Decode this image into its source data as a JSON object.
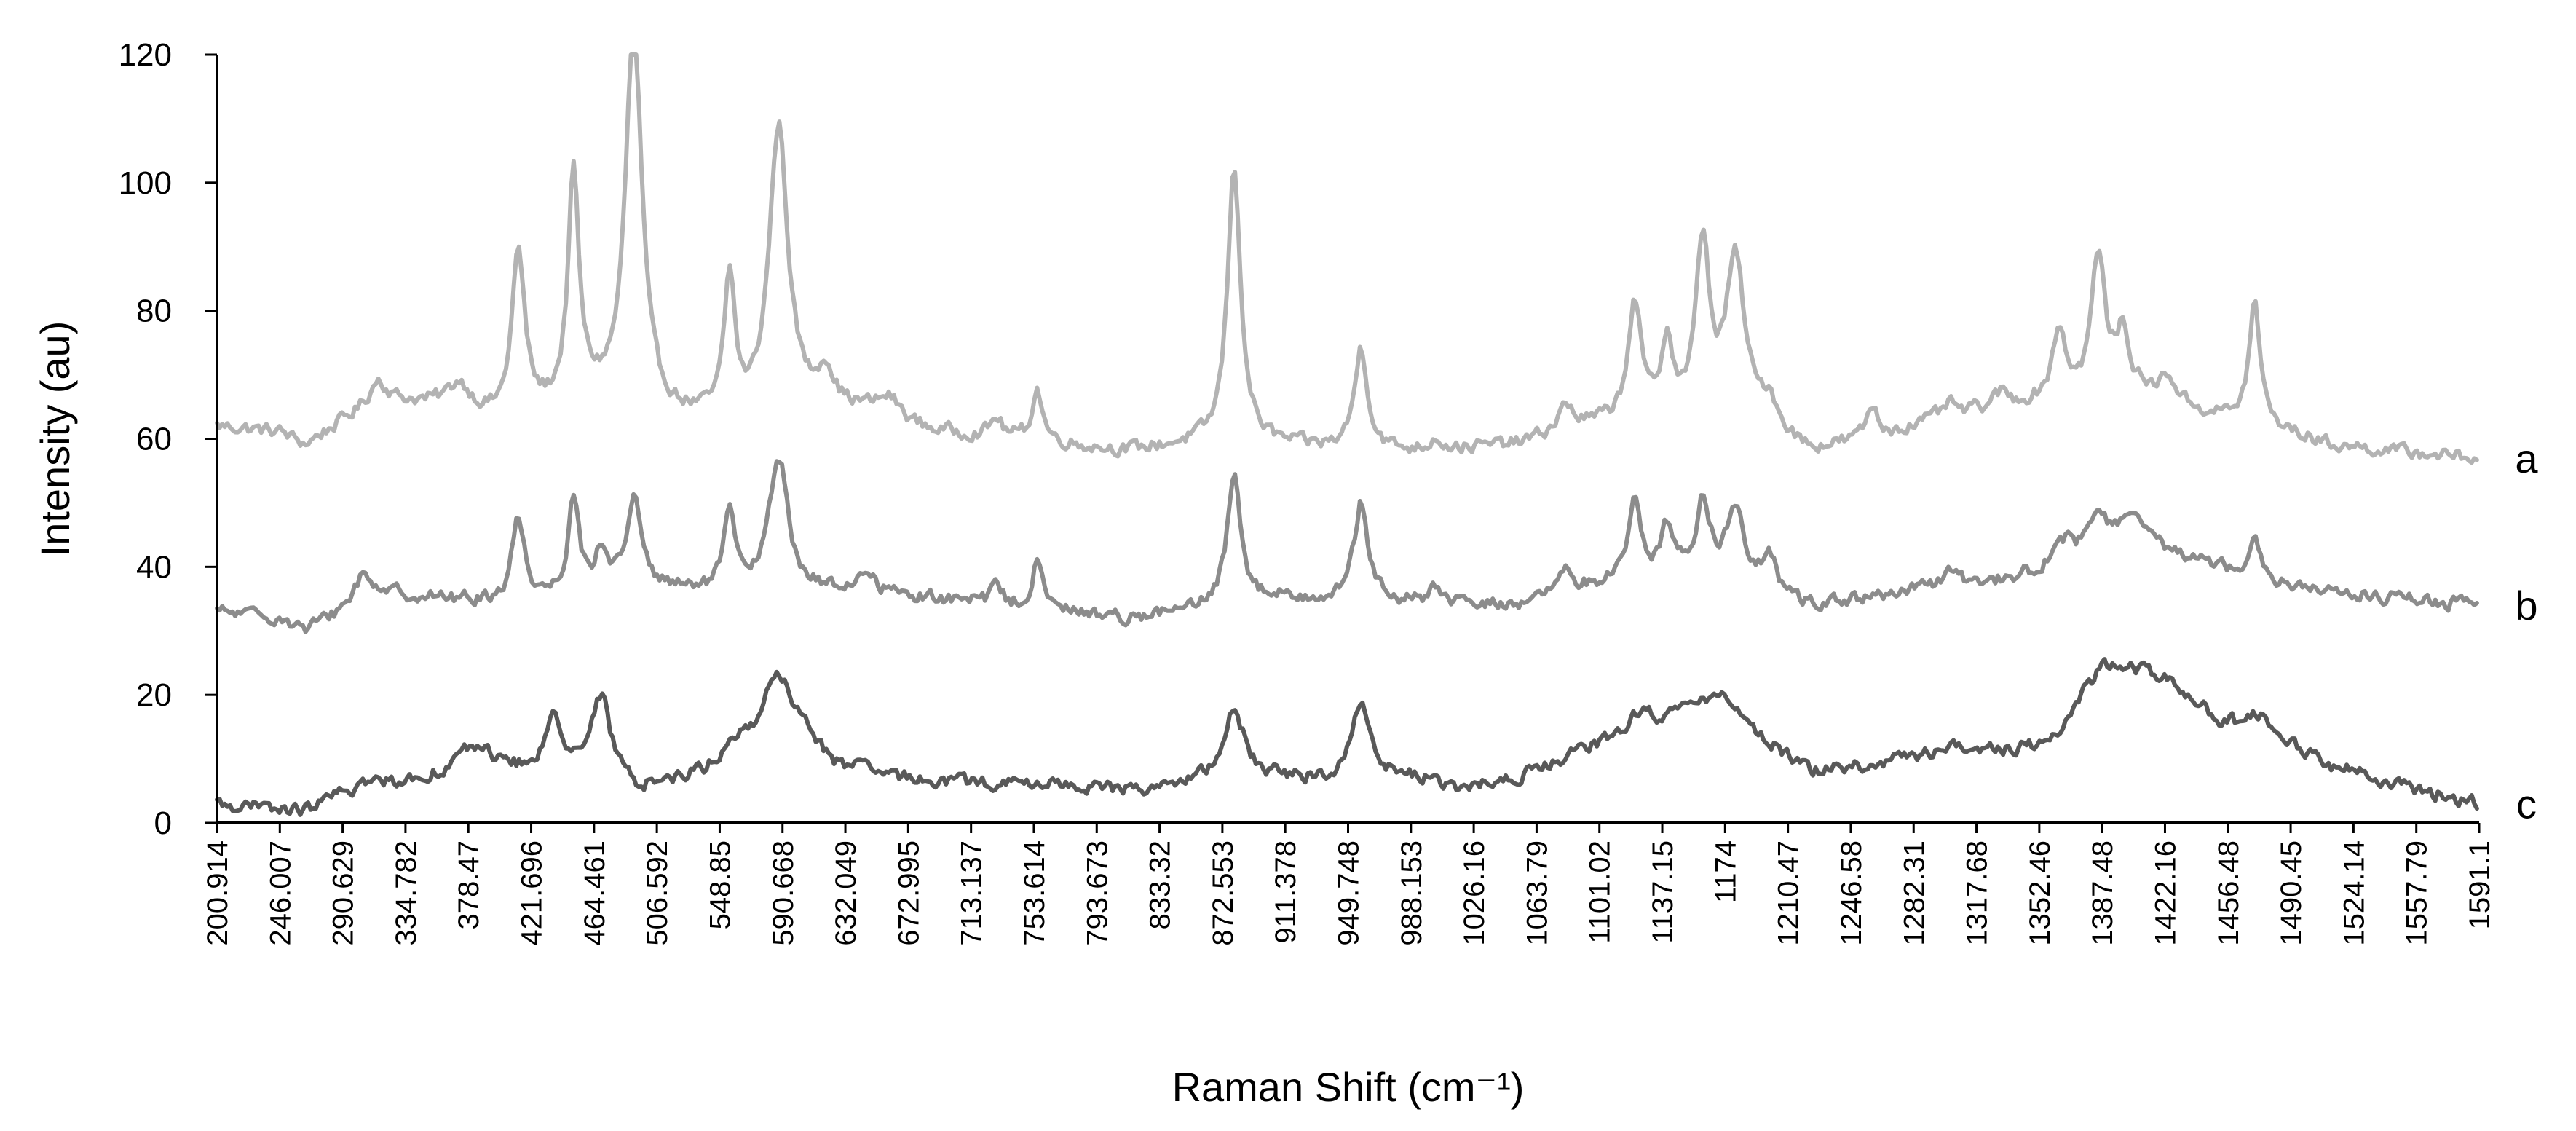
{
  "chart_data": {
    "type": "line",
    "title": "",
    "xlabel": "Raman Shift (cm⁻¹)",
    "ylabel": "Intensity (au)",
    "xlim": [
      200.914,
      1591.1
    ],
    "ylim": [
      0,
      120
    ],
    "y_ticks": [
      "0",
      "20",
      "40",
      "60",
      "80",
      "100",
      "120"
    ],
    "x_ticks": [
      "200.914",
      "246.007",
      "290.629",
      "334.782",
      "378.47",
      "421.696",
      "464.461",
      "506.592",
      "548.85",
      "590.668",
      "632.049",
      "672.995",
      "713.137",
      "753.614",
      "793.673",
      "833.32",
      "872.553",
      "911.378",
      "949.748",
      "988.153",
      "1026.16",
      "1063.79",
      "1101.02",
      "1137.15",
      "1174",
      "1210.47",
      "1246.58",
      "1282.31",
      "1317.68",
      "1352.46",
      "1387.48",
      "1422.16",
      "1456.48",
      "1490.45",
      "1524.14",
      "1557.79",
      "1591.1"
    ],
    "grid": false,
    "legend": "none",
    "series": [
      {
        "name": "a",
        "color": "#b3b3b3",
        "baseline": [
          [
            200,
            62
          ],
          [
            240,
            61
          ],
          [
            255,
            59
          ],
          [
            300,
            66
          ],
          [
            340,
            65
          ],
          [
            380,
            62
          ],
          [
            430,
            66
          ],
          [
            480,
            63
          ],
          [
            520,
            62
          ],
          [
            560,
            64
          ],
          [
            600,
            64
          ],
          [
            640,
            61
          ],
          [
            680,
            60
          ],
          [
            720,
            59
          ],
          [
            760,
            58
          ],
          [
            800,
            59
          ],
          [
            850,
            59
          ],
          [
            900,
            58
          ],
          [
            950,
            58
          ],
          [
            1000,
            59
          ],
          [
            1050,
            62
          ],
          [
            1100,
            63
          ],
          [
            1150,
            62
          ],
          [
            1180,
            58
          ],
          [
            1220,
            60
          ],
          [
            1260,
            63
          ],
          [
            1300,
            65
          ],
          [
            1340,
            66
          ],
          [
            1380,
            67
          ],
          [
            1420,
            64
          ],
          [
            1460,
            62
          ],
          [
            1500,
            59
          ],
          [
            1540,
            58
          ],
          [
            1591,
            57
          ]
        ],
        "peaks": [
          [
            300,
            3,
            6
          ],
          [
            350,
            4,
            8
          ],
          [
            386,
            26,
            5
          ],
          [
            420,
            35,
            4
          ],
          [
            457,
            60,
            6
          ],
          [
            516,
            22,
            4
          ],
          [
            546,
            45,
            7
          ],
          [
            575,
            6,
            6
          ],
          [
            614,
            3,
            8
          ],
          [
            680,
            3,
            4
          ],
          [
            705,
            8,
            4
          ],
          [
            826,
            43,
            5
          ],
          [
            904,
            16,
            5
          ],
          [
            950,
            2,
            4
          ],
          [
            1030,
            4,
            6
          ],
          [
            1072,
            18,
            5
          ],
          [
            1092,
            12,
            4
          ],
          [
            1114,
            27,
            5
          ],
          [
            1134,
            25,
            7
          ],
          [
            1155,
            4,
            5
          ],
          [
            1218,
            5,
            4
          ],
          [
            1265,
            2,
            5
          ],
          [
            1297,
            2,
            5
          ],
          [
            1333,
            11,
            5
          ],
          [
            1357,
            22,
            5
          ],
          [
            1372,
            9,
            5
          ],
          [
            1400,
            4,
            6
          ],
          [
            1453,
            19,
            4
          ]
        ]
      },
      {
        "name": "b",
        "color": "#8c8c8c",
        "baseline": [
          [
            200,
            33
          ],
          [
            240,
            32
          ],
          [
            255,
            30
          ],
          [
            300,
            36
          ],
          [
            340,
            35
          ],
          [
            380,
            34
          ],
          [
            430,
            36
          ],
          [
            480,
            36
          ],
          [
            520,
            36
          ],
          [
            560,
            36
          ],
          [
            600,
            36
          ],
          [
            640,
            35
          ],
          [
            680,
            34
          ],
          [
            720,
            33
          ],
          [
            760,
            32
          ],
          [
            800,
            33
          ],
          [
            850,
            35
          ],
          [
            900,
            35
          ],
          [
            950,
            34
          ],
          [
            1000,
            34
          ],
          [
            1050,
            37
          ],
          [
            1100,
            39
          ],
          [
            1150,
            36
          ],
          [
            1180,
            34
          ],
          [
            1220,
            35
          ],
          [
            1260,
            37
          ],
          [
            1300,
            38
          ],
          [
            1340,
            41
          ],
          [
            1380,
            44
          ],
          [
            1420,
            41
          ],
          [
            1460,
            38
          ],
          [
            1500,
            36
          ],
          [
            1540,
            35
          ],
          [
            1591,
            34
          ]
        ],
        "peaks": [
          [
            290,
            4,
            6
          ],
          [
            386,
            13,
            5
          ],
          [
            420,
            15,
            4
          ],
          [
            437,
            6,
            4
          ],
          [
            457,
            14,
            6
          ],
          [
            516,
            12,
            4
          ],
          [
            546,
            21,
            7
          ],
          [
            600,
            3,
            6
          ],
          [
            680,
            3,
            4
          ],
          [
            705,
            7,
            4
          ],
          [
            826,
            21,
            5
          ],
          [
            904,
            15,
            5
          ],
          [
            950,
            3,
            4
          ],
          [
            1030,
            3,
            6
          ],
          [
            1072,
            12,
            5
          ],
          [
            1092,
            7,
            4
          ],
          [
            1114,
            11,
            5
          ],
          [
            1134,
            12,
            7
          ],
          [
            1155,
            5,
            5
          ],
          [
            1265,
            2,
            5
          ],
          [
            1336,
            3,
            6
          ],
          [
            1357,
            6,
            7
          ],
          [
            1376,
            4,
            7
          ],
          [
            1453,
            7,
            4
          ]
        ]
      },
      {
        "name": "c",
        "color": "#595959",
        "baseline": [
          [
            200,
            3
          ],
          [
            240,
            2
          ],
          [
            255,
            2
          ],
          [
            290,
            6
          ],
          [
            330,
            7
          ],
          [
            360,
            10
          ],
          [
            400,
            7
          ],
          [
            430,
            8
          ],
          [
            460,
            5
          ],
          [
            500,
            8
          ],
          [
            520,
            12
          ],
          [
            560,
            14
          ],
          [
            580,
            9
          ],
          [
            620,
            7
          ],
          [
            680,
            6
          ],
          [
            720,
            6
          ],
          [
            760,
            5
          ],
          [
            800,
            6
          ],
          [
            860,
            7
          ],
          [
            880,
            6
          ],
          [
            940,
            7
          ],
          [
            960,
            5
          ],
          [
            1000,
            7
          ],
          [
            1040,
            11
          ],
          [
            1080,
            15
          ],
          [
            1110,
            17
          ],
          [
            1145,
            14
          ],
          [
            1180,
            8
          ],
          [
            1220,
            9
          ],
          [
            1260,
            11
          ],
          [
            1300,
            11
          ],
          [
            1330,
            13
          ],
          [
            1360,
            25
          ],
          [
            1400,
            23
          ],
          [
            1430,
            16
          ],
          [
            1460,
            14
          ],
          [
            1500,
            9
          ],
          [
            1540,
            6
          ],
          [
            1591,
            3
          ]
        ],
        "peaks": [
          [
            360,
            2,
            12
          ],
          [
            408,
            10,
            6
          ],
          [
            437,
            12,
            7
          ],
          [
            545,
            10,
            10
          ],
          [
            826,
            11,
            8
          ],
          [
            904,
            13,
            7
          ],
          [
            1075,
            3,
            8
          ],
          [
            1125,
            5,
            10
          ],
          [
            1280,
            1,
            20
          ],
          [
            1455,
            3,
            8
          ]
        ]
      }
    ]
  }
}
